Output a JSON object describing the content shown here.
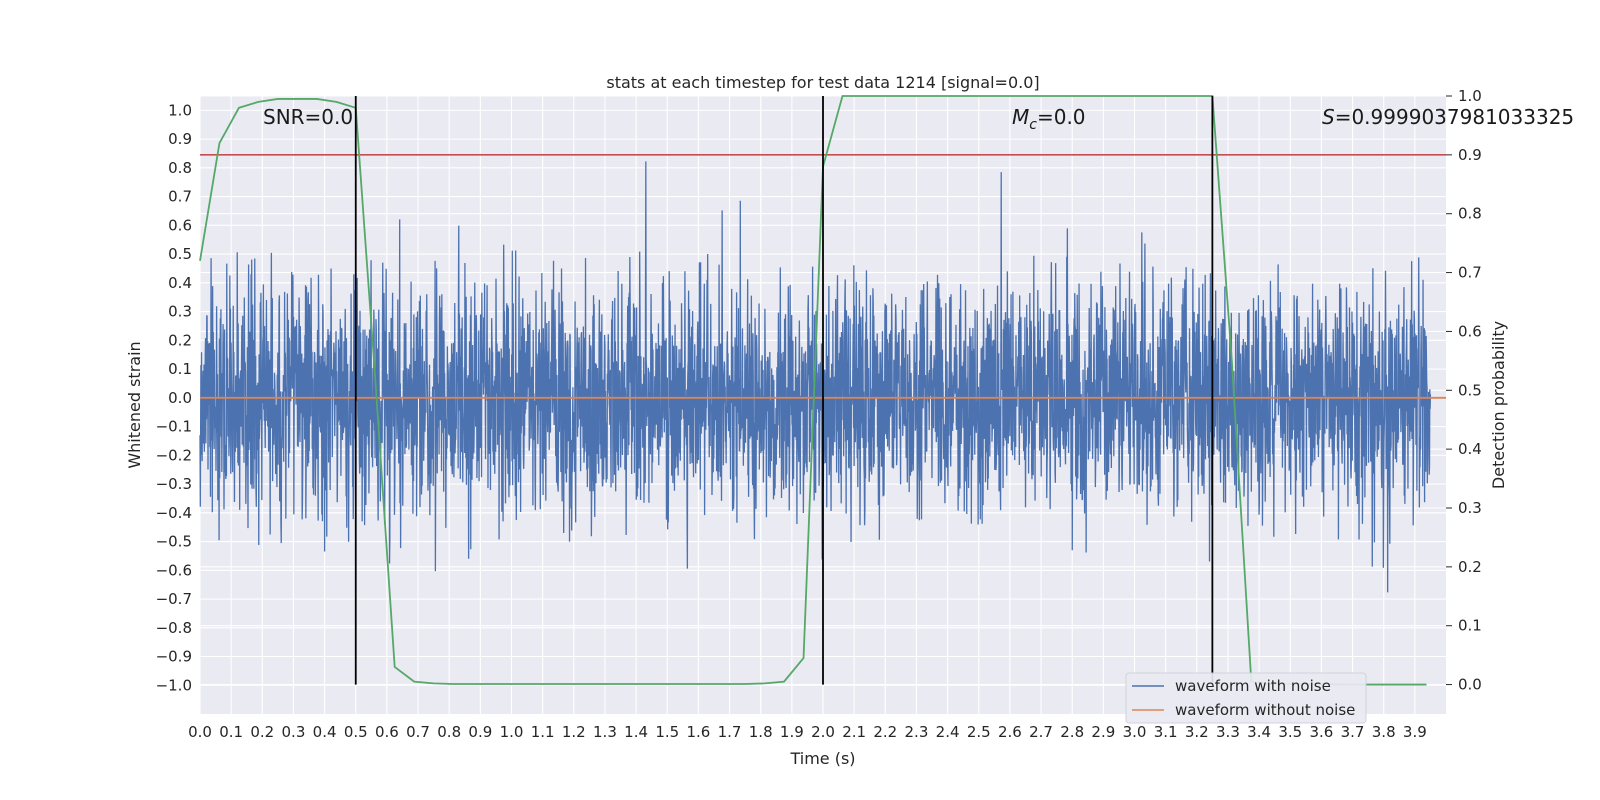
{
  "chart_data": {
    "type": "line",
    "title": "stats at each timestep for test data 1214 [signal=0.0]",
    "xlabel": "Time (s)",
    "ylabel": "Whitened strain",
    "ylabel_right": "Detection probability",
    "xlim": [
      0.0,
      4.0
    ],
    "ylim": [
      -1.1,
      1.05
    ],
    "ylim_right": [
      -0.05,
      1.0
    ],
    "x_ticks": [
      "0.0",
      "0.1",
      "0.2",
      "0.3",
      "0.4",
      "0.5",
      "0.6",
      "0.7",
      "0.8",
      "0.9",
      "1.0",
      "1.1",
      "1.2",
      "1.3",
      "1.4",
      "1.5",
      "1.6",
      "1.7",
      "1.8",
      "1.9",
      "2.0",
      "2.1",
      "2.2",
      "2.3",
      "2.4",
      "2.5",
      "2.6",
      "2.7",
      "2.8",
      "2.9",
      "3.0",
      "3.1",
      "3.2",
      "3.3",
      "3.4",
      "3.5",
      "3.6",
      "3.7",
      "3.8",
      "3.9"
    ],
    "y_ticks": [
      "1.0",
      "0.9",
      "0.8",
      "0.7",
      "0.6",
      "0.5",
      "0.4",
      "0.3",
      "0.2",
      "0.1",
      "0.0",
      "−0.1",
      "−0.2",
      "−0.3",
      "−0.4",
      "−0.5",
      "−0.6",
      "−0.7",
      "−0.8",
      "−0.9",
      "−1.0"
    ],
    "y_ticks_right": [
      "1.0",
      "0.9",
      "0.8",
      "0.7",
      "0.6",
      "0.5",
      "0.4",
      "0.3",
      "0.2",
      "0.1",
      "0.0"
    ],
    "grid": true,
    "legend_position": "bottom-right",
    "annotations": {
      "snr": "SNR=0.0",
      "mc_symbol": "M",
      "mc_sub": "c",
      "mc_value": "=0.0",
      "s_symbol": "S",
      "s_value": "=0.9999037981033325"
    },
    "series": [
      {
        "name": "waveform with noise",
        "color": "#4c72b0",
        "description": "whitened noise, amplitude mostly within ±0.6 across 0.0–4.0 s"
      },
      {
        "name": "waveform without noise",
        "color": "#dd8452",
        "x": [
          0.0,
          4.0
        ],
        "y": [
          0.0,
          0.0
        ]
      }
    ],
    "detection_probability": {
      "color": "#55a868",
      "x": [
        0.0,
        0.0625,
        0.125,
        0.1875,
        0.25,
        0.3125,
        0.375,
        0.4375,
        0.5,
        0.5625,
        0.625,
        0.6875,
        0.75,
        0.8125,
        0.875,
        1.0,
        1.25,
        1.5,
        1.75,
        1.8125,
        1.875,
        1.9375,
        2.0,
        2.0625,
        2.125,
        2.5,
        3.0,
        3.1875,
        3.25,
        3.3125,
        3.375,
        3.4375,
        3.5,
        3.75,
        3.9375
      ],
      "y": [
        0.72,
        0.92,
        0.98,
        0.99,
        0.995,
        0.995,
        0.995,
        0.99,
        0.98,
        0.52,
        0.03,
        0.005,
        0.002,
        0.001,
        0.001,
        0.001,
        0.001,
        0.001,
        0.001,
        0.002,
        0.005,
        0.045,
        0.88,
        1.0,
        1.0,
        1.0,
        1.0,
        1.0,
        1.0,
        0.55,
        0.005,
        0.001,
        0.001,
        0.0,
        0.0
      ]
    },
    "threshold": {
      "color": "#c44e52",
      "value": 0.9
    },
    "vertical_markers": {
      "color": "#000000",
      "x": [
        0.5,
        2.0,
        3.25
      ]
    }
  }
}
